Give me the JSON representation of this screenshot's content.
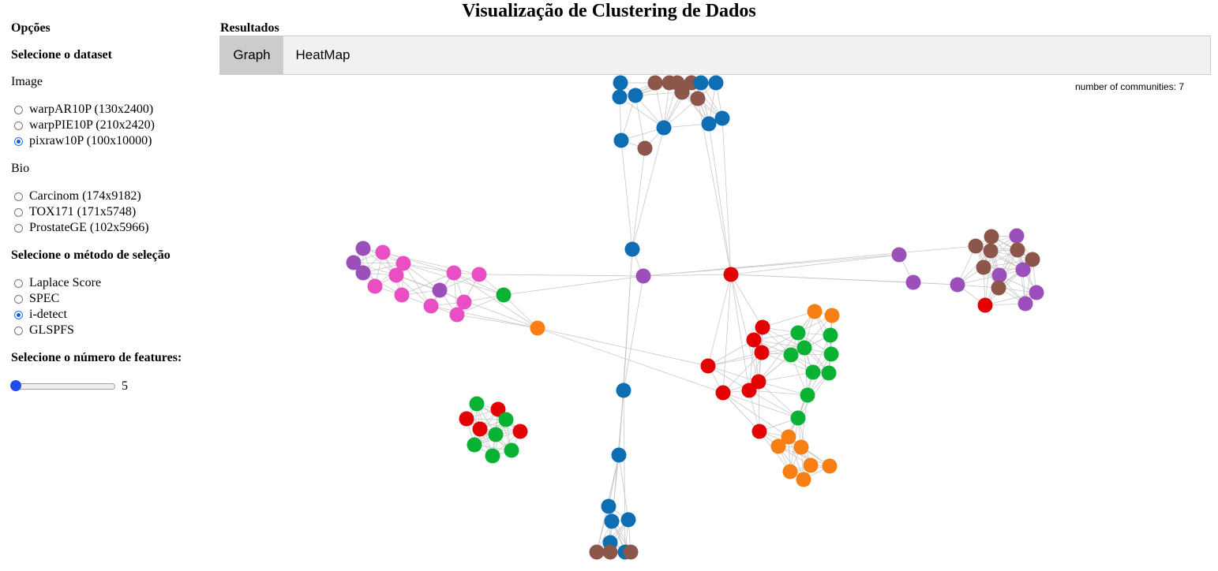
{
  "title": "Visualização de Clustering de Dados",
  "sidebar": {
    "heading": "Opções",
    "dataset_heading": "Selecione o dataset",
    "groups": [
      {
        "label": "Image",
        "options": [
          {
            "label": "warpAR10P (130x2400)",
            "checked": false
          },
          {
            "label": "warpPIE10P (210x2420)",
            "checked": false
          },
          {
            "label": "pixraw10P (100x10000)",
            "checked": true
          }
        ]
      },
      {
        "label": "Bio",
        "options": [
          {
            "label": "Carcinom (174x9182)",
            "checked": false
          },
          {
            "label": "TOX171 (171x5748)",
            "checked": false
          },
          {
            "label": "ProstateGE (102x5966)",
            "checked": false
          }
        ]
      }
    ],
    "method_heading": "Selecione o método de seleção",
    "methods": [
      {
        "label": "Laplace Score",
        "checked": false
      },
      {
        "label": "SPEC",
        "checked": false
      },
      {
        "label": "i-detect",
        "checked": true
      },
      {
        "label": "GLSPFS",
        "checked": false
      }
    ],
    "features_heading": "Selecione o número de features:",
    "features_value": "5"
  },
  "results": {
    "heading": "Resultados",
    "tabs": [
      {
        "label": "Graph",
        "active": true
      },
      {
        "label": "HeatMap",
        "active": false
      }
    ],
    "communities_label": "number of communities: 7"
  },
  "colors": {
    "blue": "#0d6eb4",
    "brown": "#8c564b",
    "purple": "#9b4fbb",
    "pink": "#ea4ec4",
    "green": "#09b232",
    "orange": "#f97e14",
    "red": "#e20000",
    "edge": "#c8c8c8"
  },
  "graph": {
    "node_count": 94,
    "community_count": 7
  }
}
